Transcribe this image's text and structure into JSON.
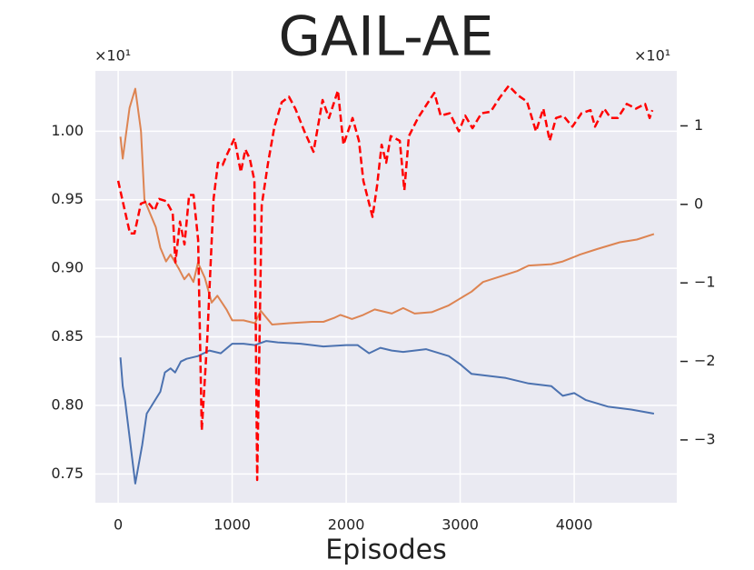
{
  "chart_data": {
    "type": "line",
    "title": "GAIL-AE",
    "xlabel": "Episodes",
    "y_offset_label": "×10¹",
    "y2_offset_label": "×10¹",
    "xlim": [
      -200,
      4900
    ],
    "xticks": [
      0,
      1000,
      2000,
      3000,
      4000
    ],
    "ylim": [
      0.729,
      1.044
    ],
    "yticks": [
      {
        "value": 0.75,
        "label": "0.75"
      },
      {
        "value": 0.8,
        "label": "0.80"
      },
      {
        "value": 0.85,
        "label": "0.85"
      },
      {
        "value": 0.9,
        "label": "0.90"
      },
      {
        "value": 0.95,
        "label": "0.95"
      },
      {
        "value": 1.0,
        "label": "1.00"
      }
    ],
    "y2lim": [
      -3.8,
      1.7
    ],
    "y2ticks": [
      {
        "value": -3,
        "label": "−3"
      },
      {
        "value": -2,
        "label": "−2"
      },
      {
        "value": -1,
        "label": "−1"
      },
      0,
      1
    ],
    "grid": true,
    "series": [
      {
        "color": "#4c72b0",
        "style": "solid",
        "axis": "y",
        "x": [
          20,
          40,
          60,
          150,
          210,
          250,
          370,
          410,
          460,
          500,
          550,
          600,
          650,
          700,
          750,
          800,
          900,
          1000,
          1100,
          1200,
          1300,
          1400,
          1600,
          1800,
          2000,
          2100,
          2200,
          2300,
          2400,
          2500,
          2700,
          2900,
          3000,
          3100,
          3200,
          3400,
          3600,
          3700,
          3800,
          3900,
          4000,
          4100,
          4300,
          4500,
          4700
        ],
        "values": [
          0.835,
          0.814,
          0.804,
          0.743,
          0.771,
          0.794,
          0.81,
          0.824,
          0.827,
          0.824,
          0.832,
          0.834,
          0.835,
          0.836,
          0.838,
          0.84,
          0.838,
          0.845,
          0.845,
          0.844,
          0.847,
          0.846,
          0.845,
          0.843,
          0.844,
          0.844,
          0.838,
          0.842,
          0.84,
          0.839,
          0.841,
          0.836,
          0.83,
          0.823,
          0.822,
          0.82,
          0.816,
          0.815,
          0.814,
          0.807,
          0.809,
          0.804,
          0.799,
          0.797,
          0.794
        ]
      },
      {
        "color": "#dd8452",
        "style": "solid",
        "axis": "y",
        "x": [
          20,
          40,
          100,
          150,
          200,
          230,
          280,
          330,
          370,
          420,
          460,
          530,
          580,
          620,
          660,
          700,
          760,
          820,
          870,
          950,
          1000,
          1100,
          1200,
          1250,
          1350,
          1500,
          1700,
          1800,
          1900,
          1950,
          2050,
          2150,
          2250,
          2400,
          2500,
          2600,
          2750,
          2900,
          3000,
          3100,
          3200,
          3350,
          3500,
          3600,
          3800,
          3900,
          4050,
          4200,
          4400,
          4550,
          4700
        ],
        "values": [
          0.996,
          0.98,
          1.017,
          1.031,
          1.0,
          0.95,
          0.94,
          0.93,
          0.915,
          0.905,
          0.91,
          0.9,
          0.892,
          0.896,
          0.89,
          0.904,
          0.893,
          0.875,
          0.88,
          0.87,
          0.862,
          0.862,
          0.86,
          0.869,
          0.859,
          0.86,
          0.861,
          0.861,
          0.864,
          0.866,
          0.863,
          0.866,
          0.87,
          0.867,
          0.871,
          0.867,
          0.868,
          0.873,
          0.878,
          0.883,
          0.89,
          0.894,
          0.898,
          0.902,
          0.903,
          0.905,
          0.91,
          0.914,
          0.919,
          0.921,
          0.925
        ]
      },
      {
        "color": "#ff0000",
        "style": "dashed",
        "axis": "y2",
        "x": [
          0,
          32,
          104,
          143,
          199,
          255,
          319,
          359,
          422,
          478,
          502,
          542,
          582,
          622,
          661,
          701,
          733,
          781,
          837,
          876,
          916,
          956,
          1020,
          1076,
          1116,
          1155,
          1195,
          1219,
          1259,
          1315,
          1371,
          1434,
          1498,
          1554,
          1634,
          1713,
          1793,
          1849,
          1928,
          1976,
          2056,
          2112,
          2151,
          2231,
          2271,
          2311,
          2351,
          2391,
          2470,
          2510,
          2550,
          2630,
          2709,
          2773,
          2829,
          2909,
          2988,
          3044,
          3108,
          3187,
          3267,
          3347,
          3426,
          3506,
          3586,
          3665,
          3729,
          3785,
          3841,
          3904,
          3984,
          4064,
          4143,
          4183,
          4263,
          4319,
          4382,
          4462,
          4542,
          4622,
          4662,
          4686
        ],
        "values": [
          0.3,
          0.09,
          -0.37,
          -0.37,
          0.01,
          0.04,
          -0.08,
          0.07,
          0.04,
          -0.11,
          -0.74,
          -0.22,
          -0.51,
          0.12,
          0.12,
          -0.45,
          -2.88,
          -1.72,
          0.07,
          0.53,
          0.5,
          0.64,
          0.84,
          0.41,
          0.7,
          0.58,
          0.3,
          -3.51,
          -0.01,
          0.53,
          0.99,
          1.3,
          1.37,
          1.22,
          0.93,
          0.67,
          1.33,
          1.1,
          1.45,
          0.76,
          1.1,
          0.81,
          0.3,
          -0.16,
          0.24,
          0.76,
          0.53,
          0.87,
          0.81,
          0.18,
          0.87,
          1.1,
          1.28,
          1.42,
          1.13,
          1.16,
          0.93,
          1.13,
          0.97,
          1.16,
          1.18,
          1.36,
          1.51,
          1.39,
          1.31,
          0.93,
          1.22,
          0.81,
          1.1,
          1.13,
          0.99,
          1.16,
          1.2,
          0.99,
          1.22,
          1.1,
          1.1,
          1.28,
          1.22,
          1.28,
          1.1,
          1.2
        ]
      }
    ]
  }
}
